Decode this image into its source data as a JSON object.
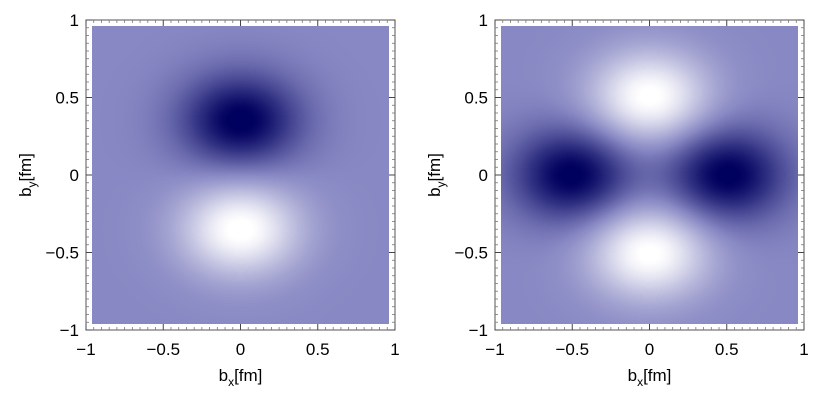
{
  "chart_data": [
    {
      "type": "heatmap",
      "title": "",
      "xlabel": {
        "base": "b",
        "sub": "x",
        "unit": "[fm]"
      },
      "ylabel": {
        "base": "b",
        "sub": "y",
        "unit": "[fm]"
      },
      "xlim": [
        -1,
        1
      ],
      "ylim": [
        -1,
        1
      ],
      "xticks": [
        -1,
        -0.5,
        0,
        0.5,
        1
      ],
      "xtick_labels": [
        "−1",
        "−0.5",
        "0",
        "0.5",
        "1"
      ],
      "yticks": [
        -1,
        -0.5,
        0,
        0.5,
        1
      ],
      "ytick_labels": [
        "−1",
        "−0.5",
        "0",
        "0.5",
        "1"
      ],
      "colormap": {
        "low": "#ffffff",
        "mid": "#8888c4",
        "high": "#00005e"
      },
      "background_level": 0.5,
      "features": [
        {
          "kind": "maximum",
          "x": 0,
          "y": 0.35
        },
        {
          "kind": "minimum",
          "x": 0,
          "y": -0.35
        }
      ]
    },
    {
      "type": "heatmap",
      "title": "",
      "xlabel": {
        "base": "b",
        "sub": "x",
        "unit": "[fm]"
      },
      "ylabel": {
        "base": "b",
        "sub": "y",
        "unit": "[fm]"
      },
      "xlim": [
        -1,
        1
      ],
      "ylim": [
        -1,
        1
      ],
      "xticks": [
        -1,
        -0.5,
        0,
        0.5,
        1
      ],
      "xtick_labels": [
        "−1",
        "−0.5",
        "0",
        "0.5",
        "1"
      ],
      "yticks": [
        -1,
        -0.5,
        0,
        0.5,
        1
      ],
      "ytick_labels": [
        "−1",
        "−0.5",
        "0",
        "0.5",
        "1"
      ],
      "colormap": {
        "low": "#ffffff",
        "mid": "#8888c4",
        "high": "#00005e"
      },
      "background_level": 0.5,
      "features": [
        {
          "kind": "maximum",
          "x": -0.5,
          "y": 0
        },
        {
          "kind": "maximum",
          "x": 0.5,
          "y": 0
        },
        {
          "kind": "minimum",
          "x": 0,
          "y": 0.5
        },
        {
          "kind": "minimum",
          "x": 0,
          "y": -0.5
        }
      ]
    }
  ]
}
